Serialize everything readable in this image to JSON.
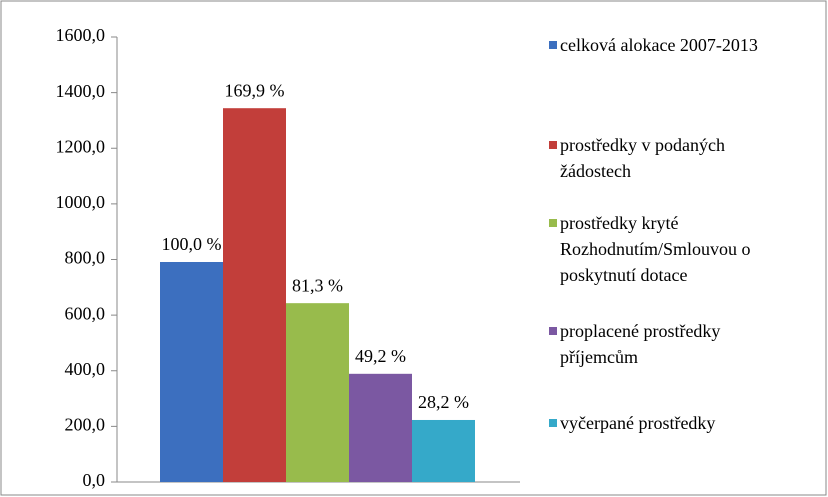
{
  "chart_data": {
    "type": "bar",
    "categories": [
      null
    ],
    "series": [
      {
        "name": "celková alokace 2007-2013",
        "color": "#3c6fbf",
        "values": [
          791
        ]
      },
      {
        "name": "prostředky v podaných žádostech",
        "color": "#c23e3a",
        "values": [
          1344
        ]
      },
      {
        "name": "prostředky kryté Rozhodnutím/Smlouvou o poskytnutí dotace",
        "color": "#98bb4c",
        "values": [
          643
        ]
      },
      {
        "name": "proplacené prostředky příjemcům",
        "color": "#7b58a2",
        "values": [
          389
        ]
      },
      {
        "name": "vyčerpané prostředky",
        "color": "#35a9c9",
        "values": [
          223
        ]
      }
    ],
    "annotations": [
      "100,0 %",
      "169,9 %",
      "81,3 %",
      "49,2 %",
      "28,2 %"
    ],
    "ylim": [
      0,
      1600
    ],
    "yticks": [
      {
        "value": 0,
        "label": "0,0"
      },
      {
        "value": 200,
        "label": "200,0"
      },
      {
        "value": 400,
        "label": "400,0"
      },
      {
        "value": 600,
        "label": "600,0"
      },
      {
        "value": 800,
        "label": "800,0"
      },
      {
        "value": 1000,
        "label": "1000,0"
      },
      {
        "value": 1200,
        "label": "1200,0"
      },
      {
        "value": 1400,
        "label": "1400,0"
      },
      {
        "value": 1600,
        "label": "1600,0"
      }
    ],
    "grid": false,
    "legend": "right"
  }
}
